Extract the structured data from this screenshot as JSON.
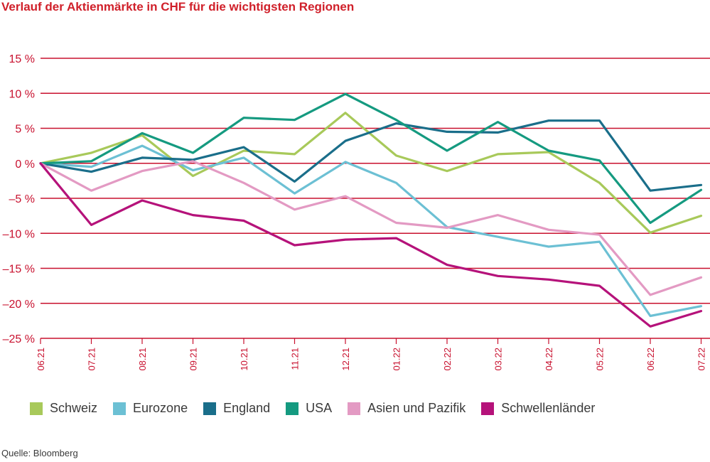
{
  "title": "Verlauf der Aktienmärkte in CHF für die wichtigsten Regionen",
  "source": "Quelle: Bloomberg",
  "colors": {
    "axis": "#c8102e",
    "grid": "#c8102e",
    "text_red": "#c8102e"
  },
  "chart_data": {
    "type": "line",
    "title": "Verlauf der Aktienmärkte in CHF für die wichtigsten Regionen",
    "xlabel": "",
    "ylabel": "",
    "ylim": [
      -25,
      15
    ],
    "yticks": [
      15,
      10,
      5,
      0,
      -5,
      -10,
      -15,
      -20,
      -25
    ],
    "ytick_labels": [
      "15 %",
      "10 %",
      "5 %",
      "0 %",
      "–5 %",
      "–10 %",
      "–15 %",
      "–20 %",
      "–25 %"
    ],
    "categories": [
      "06.21",
      "07.21",
      "08.21",
      "09.21",
      "10.21",
      "11.21",
      "12.21",
      "01.22",
      "02.22",
      "03.22",
      "04.22",
      "05.22",
      "06.22",
      "07.22"
    ],
    "grid": true,
    "legend_position": "bottom",
    "series": [
      {
        "name": "Schweiz",
        "color": "#a8c95a",
        "values": [
          0,
          1.5,
          4.0,
          -1.8,
          1.8,
          1.3,
          7.2,
          1.1,
          -1.1,
          1.3,
          1.6,
          -2.8,
          -9.9,
          -7.5
        ]
      },
      {
        "name": "Eurozone",
        "color": "#6cc0d4",
        "values": [
          0,
          -0.5,
          2.5,
          -1.0,
          0.8,
          -4.3,
          0.2,
          -2.8,
          -9.1,
          -10.5,
          -11.9,
          -11.2,
          -21.8,
          -20.4
        ]
      },
      {
        "name": "England",
        "color": "#1a6e8a",
        "values": [
          0,
          -1.2,
          0.8,
          0.5,
          2.3,
          -2.6,
          3.2,
          5.7,
          4.5,
          4.4,
          6.1,
          6.1,
          -3.9,
          -3.1
        ]
      },
      {
        "name": "USA",
        "color": "#159a80",
        "values": [
          0,
          0.3,
          4.3,
          1.5,
          6.5,
          6.2,
          9.9,
          6.2,
          1.8,
          5.9,
          1.8,
          0.4,
          -8.5,
          -3.8
        ]
      },
      {
        "name": "Asien und Pazifik",
        "color": "#e39ac3",
        "values": [
          0,
          -3.9,
          -1.1,
          0.3,
          -2.8,
          -6.6,
          -4.7,
          -8.5,
          -9.2,
          -7.4,
          -9.5,
          -10.2,
          -18.8,
          -16.3
        ]
      },
      {
        "name": "Schwellenländer",
        "color": "#b5127a",
        "values": [
          0,
          -8.8,
          -5.3,
          -7.4,
          -8.2,
          -11.7,
          -10.9,
          -10.7,
          -14.5,
          -16.1,
          -16.6,
          -17.5,
          -23.3,
          -21.1
        ]
      }
    ]
  }
}
